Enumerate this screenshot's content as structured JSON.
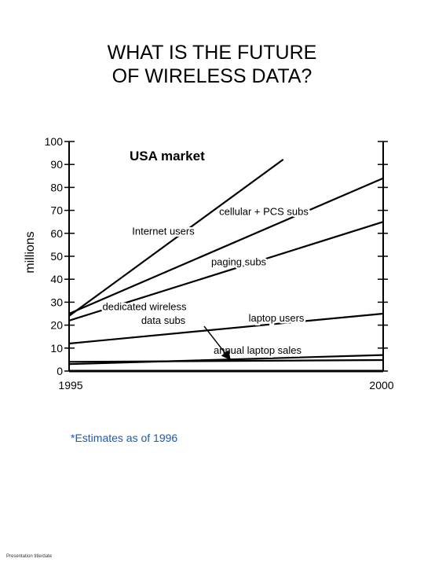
{
  "page": {
    "title_line1": "WHAT IS THE FUTURE",
    "title_line2": "OF WIRELESS DATA?",
    "note": "*Estimates as of 1996",
    "footer": "Presentation title/date"
  },
  "chart_data": {
    "type": "line",
    "title": "WHAT IS THE FUTURE OF WIRELESS DATA?",
    "subtitle": "USA market",
    "xlabel": "",
    "ylabel": "millions",
    "xlim": [
      1995,
      2000
    ],
    "ylim": [
      0,
      100
    ],
    "x_ticks": [
      1995,
      2000
    ],
    "y_ticks": [
      0,
      10,
      20,
      30,
      40,
      50,
      60,
      70,
      80,
      90,
      100
    ],
    "grid": false,
    "series": [
      {
        "name": "Internet users",
        "x": [
          1995,
          1998.4
        ],
        "y": [
          24,
          92
        ]
      },
      {
        "name": "cellular + PCS subs",
        "x": [
          1995,
          2000
        ],
        "y": [
          25,
          84
        ]
      },
      {
        "name": "paging subs",
        "x": [
          1995,
          2000
        ],
        "y": [
          22,
          65
        ]
      },
      {
        "name": "laptop users",
        "x": [
          1995,
          2000
        ],
        "y": [
          12,
          25
        ]
      },
      {
        "name": "dedicated wireless data subs",
        "x": [
          1995,
          2000
        ],
        "y": [
          3,
          7
        ]
      },
      {
        "name": "annual laptop sales",
        "x": [
          1995,
          2000
        ],
        "y": [
          4,
          4.8
        ]
      }
    ],
    "annotations": [
      {
        "text": "Internet users",
        "x": 1996.5,
        "y": 59.5
      },
      {
        "text": "cellular + PCS subs",
        "x": 1998.1,
        "y": 68
      },
      {
        "text": "paging subs",
        "x": 1997.7,
        "y": 46
      },
      {
        "text": "laptop users",
        "x": 1998.3,
        "y": 21.5
      },
      {
        "text": "dedicated wireless",
        "x": 1996.2,
        "y": 26.5
      },
      {
        "text": "data subs",
        "x": 1996.5,
        "y": 20.5
      },
      {
        "text": "annual laptop sales",
        "x": 1998.0,
        "y": 7.5
      }
    ]
  }
}
